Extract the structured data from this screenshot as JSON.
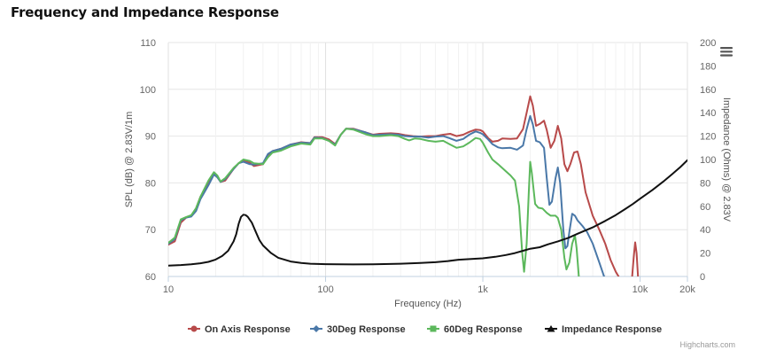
{
  "page": {
    "title": "Frequency and Impedance Response",
    "menu_icon": "hamburger-menu-icon",
    "credits": "Highcharts.com"
  },
  "chart_data": {
    "type": "line",
    "title": "Frequency and Impedance Response",
    "xlabel": "Frequency (Hz)",
    "x_scale": "log",
    "xlim": [
      10,
      20000
    ],
    "x_ticks": [
      {
        "value": 10,
        "label": "10"
      },
      {
        "value": 100,
        "label": "100"
      },
      {
        "value": 1000,
        "label": "1k"
      },
      {
        "value": 10000,
        "label": "10k"
      },
      {
        "value": 20000,
        "label": "20k"
      }
    ],
    "ylabel": "SPL (dB) @ 2.83V/1m",
    "ylim": [
      60,
      110
    ],
    "y_ticks": [
      60,
      70,
      80,
      90,
      100,
      110
    ],
    "y2label": "Impedance (Ohms) @ 2.83V",
    "y2lim": [
      0,
      200
    ],
    "y2_ticks": [
      0,
      20,
      40,
      60,
      80,
      100,
      120,
      140,
      160,
      180,
      200
    ],
    "grid": true,
    "legend_position": "bottom-center",
    "series": [
      {
        "name": "On Axis Response",
        "color": "#b84a4a",
        "marker": "circle",
        "axis": "left",
        "points": [
          [
            10,
            66.8
          ],
          [
            11,
            67.5
          ],
          [
            12,
            71.5
          ],
          [
            13,
            72.6
          ],
          [
            14,
            73.0
          ],
          [
            15,
            74.5
          ],
          [
            16,
            77
          ],
          [
            18,
            80
          ],
          [
            19.5,
            82.0
          ],
          [
            20.5,
            81.5
          ],
          [
            21.5,
            80.2
          ],
          [
            23,
            80.5
          ],
          [
            26,
            83
          ],
          [
            28,
            84.2
          ],
          [
            30,
            84.8
          ],
          [
            33,
            84.3
          ],
          [
            35,
            83.6
          ],
          [
            40,
            84
          ],
          [
            43,
            86
          ],
          [
            46,
            86.8
          ],
          [
            52,
            87.3
          ],
          [
            60,
            88.2
          ],
          [
            70,
            88.7
          ],
          [
            80,
            88.5
          ],
          [
            85,
            89.8
          ],
          [
            95,
            89.8
          ],
          [
            105,
            89.3
          ],
          [
            115,
            88.3
          ],
          [
            125,
            90.3
          ],
          [
            135,
            91.6
          ],
          [
            150,
            91.6
          ],
          [
            180,
            90.8
          ],
          [
            200,
            90.3
          ],
          [
            220,
            90.5
          ],
          [
            260,
            90.6
          ],
          [
            290,
            90.5
          ],
          [
            320,
            90.2
          ],
          [
            360,
            90
          ],
          [
            400,
            89.9
          ],
          [
            450,
            90
          ],
          [
            500,
            90
          ],
          [
            560,
            90.3
          ],
          [
            620,
            90.5
          ],
          [
            680,
            90.0
          ],
          [
            750,
            90.3
          ],
          [
            820,
            90.9
          ],
          [
            900,
            91.4
          ],
          [
            960,
            91.3
          ],
          [
            1000,
            91
          ],
          [
            1080,
            89.6
          ],
          [
            1150,
            88.8
          ],
          [
            1250,
            89.0
          ],
          [
            1330,
            89.5
          ],
          [
            1500,
            89.4
          ],
          [
            1650,
            89.5
          ],
          [
            1800,
            91.5
          ],
          [
            1900,
            95
          ],
          [
            2000,
            98.5
          ],
          [
            2080,
            96.5
          ],
          [
            2180,
            92.2
          ],
          [
            2300,
            92.6
          ],
          [
            2450,
            93.3
          ],
          [
            2550,
            91.3
          ],
          [
            2700,
            87.5
          ],
          [
            2850,
            89
          ],
          [
            3000,
            92.2
          ],
          [
            3150,
            89.5
          ],
          [
            3300,
            84
          ],
          [
            3450,
            82.5
          ],
          [
            3600,
            84
          ],
          [
            3800,
            86.5
          ],
          [
            4000,
            86.7
          ],
          [
            4200,
            84
          ],
          [
            4500,
            78
          ],
          [
            5000,
            73
          ],
          [
            5500,
            70
          ],
          [
            6000,
            67
          ],
          [
            6500,
            63.5
          ],
          [
            7000,
            61
          ],
          [
            7300,
            60
          ]
        ]
      },
      {
        "name": "On Axis Response",
        "color": "#b84a4a",
        "marker": "circle",
        "axis": "left",
        "continuation": true,
        "points": [
          [
            8900,
            60
          ],
          [
            9100,
            64
          ],
          [
            9300,
            67.3
          ],
          [
            9500,
            65
          ],
          [
            9700,
            60
          ]
        ]
      },
      {
        "name": "30Deg Response",
        "color": "#4a78a8",
        "marker": "diamond",
        "axis": "left",
        "points": [
          [
            10,
            67
          ],
          [
            11,
            68
          ],
          [
            12,
            72
          ],
          [
            13,
            72.6
          ],
          [
            14,
            72.8
          ],
          [
            15,
            74
          ],
          [
            16,
            76.5
          ],
          [
            18,
            79.5
          ],
          [
            19.5,
            81.8
          ],
          [
            20.5,
            81.2
          ],
          [
            21.5,
            80.2
          ],
          [
            23,
            80.8
          ],
          [
            26,
            83
          ],
          [
            28,
            84.2
          ],
          [
            30,
            84.5
          ],
          [
            33,
            84
          ],
          [
            35,
            83.9
          ],
          [
            40,
            84.2
          ],
          [
            43,
            86.2
          ],
          [
            46,
            86.8
          ],
          [
            52,
            87.3
          ],
          [
            60,
            88.2
          ],
          [
            70,
            88.6
          ],
          [
            80,
            88.5
          ],
          [
            85,
            89.7
          ],
          [
            95,
            89.6
          ],
          [
            105,
            89
          ],
          [
            115,
            88.2
          ],
          [
            125,
            90.3
          ],
          [
            135,
            91.6
          ],
          [
            150,
            91.5
          ],
          [
            180,
            90.8
          ],
          [
            200,
            90.2
          ],
          [
            220,
            90.3
          ],
          [
            260,
            90.4
          ],
          [
            290,
            90.3
          ],
          [
            320,
            90.0
          ],
          [
            360,
            89.9
          ],
          [
            400,
            89.9
          ],
          [
            450,
            89.7
          ],
          [
            500,
            89.9
          ],
          [
            560,
            90.0
          ],
          [
            620,
            89.5
          ],
          [
            680,
            89.0
          ],
          [
            750,
            89.4
          ],
          [
            820,
            90.3
          ],
          [
            900,
            91.0
          ],
          [
            960,
            90.7
          ],
          [
            1000,
            90.4
          ],
          [
            1080,
            89.3
          ],
          [
            1150,
            88.3
          ],
          [
            1250,
            87.6
          ],
          [
            1330,
            87.4
          ],
          [
            1500,
            87.5
          ],
          [
            1650,
            87.1
          ],
          [
            1800,
            88
          ],
          [
            1900,
            91.5
          ],
          [
            2000,
            94.3
          ],
          [
            2080,
            92.5
          ],
          [
            2180,
            89
          ],
          [
            2300,
            88.7
          ],
          [
            2450,
            87.5
          ],
          [
            2550,
            81
          ],
          [
            2650,
            75.3
          ],
          [
            2750,
            76
          ],
          [
            2900,
            81
          ],
          [
            3000,
            83.3
          ],
          [
            3100,
            80
          ],
          [
            3250,
            70
          ],
          [
            3350,
            66
          ],
          [
            3450,
            66.5
          ],
          [
            3550,
            69.5
          ],
          [
            3700,
            73.4
          ],
          [
            3850,
            73
          ],
          [
            4000,
            72
          ],
          [
            4300,
            70.8
          ],
          [
            4600,
            69.5
          ],
          [
            5000,
            67
          ],
          [
            5500,
            63
          ],
          [
            5900,
            60
          ]
        ]
      },
      {
        "name": "60Deg Response",
        "color": "#5cb85c",
        "marker": "square",
        "axis": "left",
        "points": [
          [
            10,
            67.2
          ],
          [
            11,
            68.3
          ],
          [
            12,
            72.2
          ],
          [
            13,
            72.7
          ],
          [
            14,
            73.1
          ],
          [
            15,
            74.6
          ],
          [
            16,
            77
          ],
          [
            18,
            80.5
          ],
          [
            19.5,
            82.3
          ],
          [
            20.5,
            81.6
          ],
          [
            21.5,
            80.3
          ],
          [
            23,
            81
          ],
          [
            26,
            83.2
          ],
          [
            28,
            84.2
          ],
          [
            30,
            85
          ],
          [
            33,
            84.7
          ],
          [
            35,
            84.2
          ],
          [
            40,
            84
          ],
          [
            43,
            85.5
          ],
          [
            46,
            86.5
          ],
          [
            52,
            86.9
          ],
          [
            60,
            87.8
          ],
          [
            70,
            88.4
          ],
          [
            80,
            88.2
          ],
          [
            85,
            89.5
          ],
          [
            95,
            89.5
          ],
          [
            105,
            89.0
          ],
          [
            115,
            88.0
          ],
          [
            125,
            90.3
          ],
          [
            135,
            91.6
          ],
          [
            150,
            91.4
          ],
          [
            180,
            90.4
          ],
          [
            200,
            90
          ],
          [
            220,
            90
          ],
          [
            260,
            90.2
          ],
          [
            290,
            90
          ],
          [
            320,
            89.4
          ],
          [
            340,
            89.1
          ],
          [
            370,
            89.5
          ],
          [
            400,
            89.4
          ],
          [
            450,
            89.0
          ],
          [
            500,
            88.8
          ],
          [
            560,
            89.0
          ],
          [
            620,
            88.2
          ],
          [
            680,
            87.5
          ],
          [
            750,
            87.8
          ],
          [
            820,
            88.6
          ],
          [
            900,
            89.6
          ],
          [
            960,
            89.4
          ],
          [
            1000,
            88.6
          ],
          [
            1080,
            86.5
          ],
          [
            1150,
            85.0
          ],
          [
            1250,
            84
          ],
          [
            1400,
            82.5
          ],
          [
            1500,
            81.6
          ],
          [
            1600,
            80.5
          ],
          [
            1700,
            75
          ],
          [
            1780,
            65
          ],
          [
            1830,
            61
          ],
          [
            1900,
            67
          ],
          [
            1960,
            78
          ],
          [
            2000,
            84.5
          ],
          [
            2050,
            82
          ],
          [
            2150,
            75.5
          ],
          [
            2250,
            74.7
          ],
          [
            2400,
            74.5
          ],
          [
            2550,
            73.6
          ],
          [
            2700,
            73
          ],
          [
            2900,
            73
          ],
          [
            3000,
            72.5
          ],
          [
            3150,
            70
          ],
          [
            3300,
            64
          ],
          [
            3400,
            61.5
          ],
          [
            3550,
            63
          ],
          [
            3700,
            67
          ],
          [
            3850,
            68.8
          ],
          [
            3950,
            66
          ],
          [
            4080,
            60
          ]
        ]
      },
      {
        "name": "Impedance Response",
        "color": "#111111",
        "marker": "triangle",
        "axis": "right",
        "points": [
          [
            10,
            9.3
          ],
          [
            12,
            9.8
          ],
          [
            14,
            10.4
          ],
          [
            16,
            11.3
          ],
          [
            18,
            12.5
          ],
          [
            20,
            14.5
          ],
          [
            22,
            17.5
          ],
          [
            24,
            22
          ],
          [
            26,
            30
          ],
          [
            27,
            36
          ],
          [
            28,
            45
          ],
          [
            29,
            51
          ],
          [
            30,
            52.8
          ],
          [
            31,
            52.5
          ],
          [
            32,
            51
          ],
          [
            34,
            46
          ],
          [
            36,
            38
          ],
          [
            38,
            31
          ],
          [
            40,
            26.5
          ],
          [
            45,
            20
          ],
          [
            50,
            16
          ],
          [
            60,
            12.8
          ],
          [
            70,
            11.5
          ],
          [
            80,
            10.9
          ],
          [
            100,
            10.5
          ],
          [
            120,
            10.4
          ],
          [
            150,
            10.3
          ],
          [
            200,
            10.4
          ],
          [
            300,
            10.9
          ],
          [
            400,
            11.5
          ],
          [
            500,
            12.2
          ],
          [
            600,
            13.2
          ],
          [
            700,
            14.3
          ],
          [
            800,
            14.8
          ],
          [
            1000,
            15.5
          ],
          [
            1200,
            16.8
          ],
          [
            1400,
            18.3
          ],
          [
            1600,
            20
          ],
          [
            1800,
            22
          ],
          [
            2000,
            23.7
          ],
          [
            2300,
            25
          ],
          [
            2600,
            27.5
          ],
          [
            3000,
            30
          ],
          [
            3500,
            33
          ],
          [
            4000,
            36.5
          ],
          [
            5000,
            42
          ],
          [
            6000,
            47.5
          ],
          [
            7000,
            52.5
          ],
          [
            8000,
            57.5
          ],
          [
            9000,
            62
          ],
          [
            10000,
            66.5
          ],
          [
            12000,
            74
          ],
          [
            14000,
            81
          ],
          [
            16000,
            87.5
          ],
          [
            18000,
            93.5
          ],
          [
            20000,
            99.5
          ]
        ]
      }
    ]
  }
}
